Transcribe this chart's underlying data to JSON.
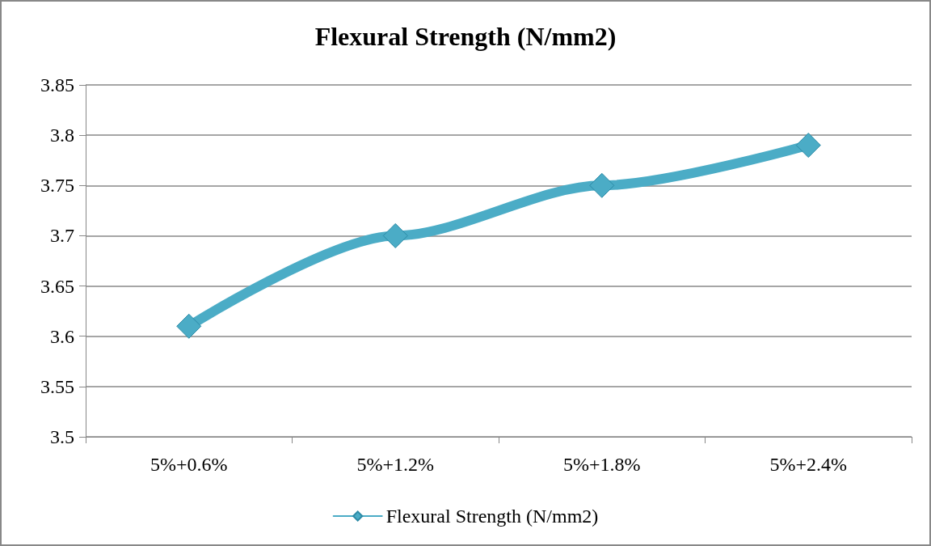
{
  "chart_data": {
    "type": "line",
    "title": "Flexural Strength (N/mm2)",
    "categories": [
      "5%+0.6%",
      "5%+1.2%",
      "5%+1.8%",
      "5%+2.4%"
    ],
    "series": [
      {
        "name": "Flexural Strength (N/mm2)",
        "color": "#4bacc6",
        "values": [
          3.61,
          3.7,
          3.75,
          3.79
        ]
      }
    ],
    "ylim": [
      3.5,
      3.85
    ],
    "yticks": [
      3.5,
      3.55,
      3.6,
      3.65,
      3.7,
      3.75,
      3.8,
      3.85
    ],
    "grid": "y",
    "legend": "bottom",
    "marker": "diamond",
    "line_style": "solid"
  }
}
